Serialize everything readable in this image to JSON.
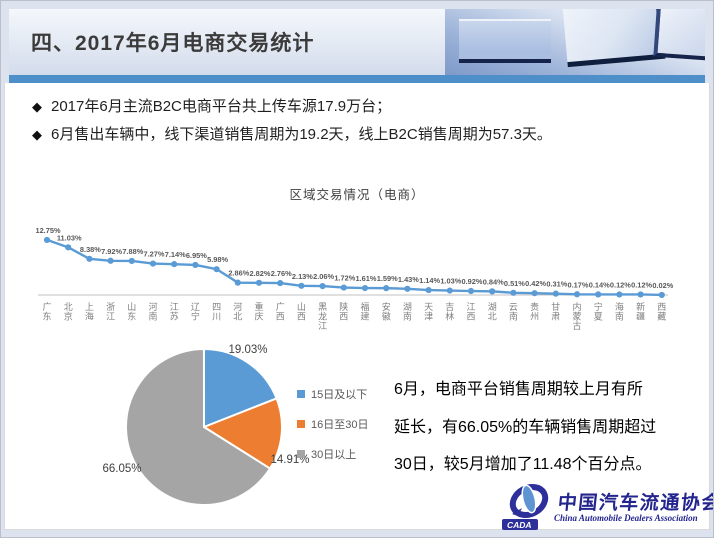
{
  "header": {
    "title": "四、2017年6月电商交易统计"
  },
  "bullet_marker": "◆",
  "bullets": [
    "2017年6月主流B2C电商平台共上传车源17.9万台；",
    "6月售出车辆中，线下渠道销售周期为19.2天，线上B2C销售周期为57.3天。"
  ],
  "colors": {
    "accent_bar": "#4E8FC9"
  },
  "chart_data": [
    {
      "type": "line",
      "title": "区域交易情况（电商）",
      "categories": [
        "广东",
        "北京",
        "上海",
        "浙江",
        "山东",
        "河南",
        "江苏",
        "辽宁",
        "四川",
        "河北",
        "重庆",
        "广西",
        "山西",
        "黑龙江",
        "陕西",
        "福建",
        "安徽",
        "湖南",
        "天津",
        "吉林",
        "江西",
        "湖北",
        "云南",
        "贵州",
        "甘肃",
        "内蒙古",
        "宁夏",
        "海南",
        "新疆",
        "西藏"
      ],
      "values": [
        12.75,
        11.03,
        8.38,
        7.92,
        7.88,
        7.27,
        7.14,
        6.95,
        5.98,
        2.86,
        2.82,
        2.76,
        2.13,
        2.06,
        1.72,
        1.61,
        1.59,
        1.43,
        1.14,
        1.03,
        0.92,
        0.84,
        0.51,
        0.42,
        0.31,
        0.17,
        0.14,
        0.12,
        0.12,
        0.02
      ],
      "unit": "%",
      "line_color": "#5B9BD5",
      "ylim": [
        0,
        14
      ],
      "grid": false,
      "legend_position": "none"
    },
    {
      "type": "pie",
      "labels": [
        "15日及以下",
        "16日至30日",
        "30日以上"
      ],
      "values": [
        19.03,
        14.91,
        66.05
      ],
      "unit": "%",
      "colors": [
        "#5B9BD5",
        "#ED7D31",
        "#A5A5A5"
      ],
      "legend_position": "right"
    }
  ],
  "summary_lines": [
    "6月，电商平台销售周期较上月有所",
    "延长，有66.05%的车辆销售周期超过",
    "30日，较5月增加了11.48个百分点。"
  ],
  "logo": {
    "mark": "CADA",
    "cn": "中国汽车流通协会",
    "en": "China Automobile Dealers Association"
  }
}
